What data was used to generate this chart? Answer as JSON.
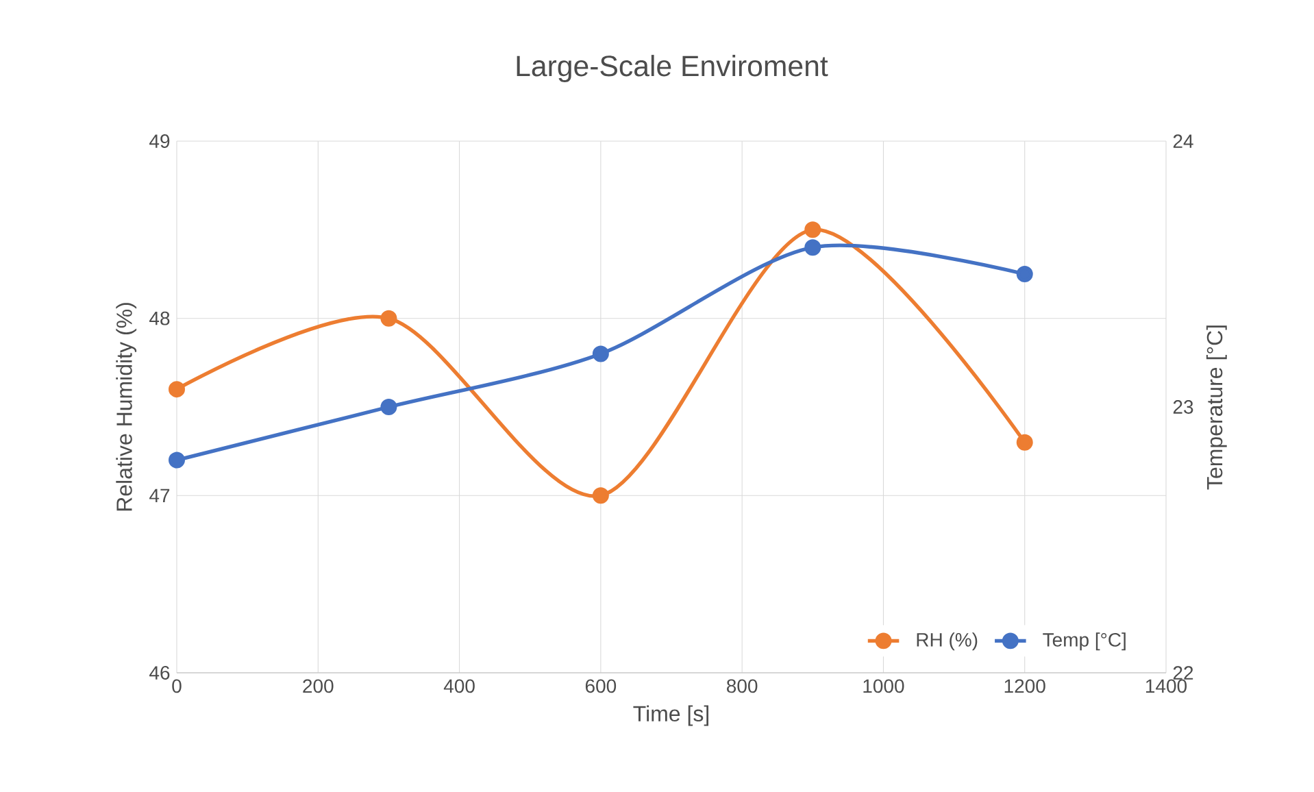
{
  "chart_data": {
    "type": "line",
    "title": "Large-Scale Enviroment",
    "xlabel": "Time [s]",
    "ylabel": "Relative Humidity (%)",
    "y2label": "Temperature [°C]",
    "x": [
      0,
      300,
      600,
      900,
      1200
    ],
    "series": [
      {
        "name": "RH (%)",
        "color": "#ed7d31",
        "values": [
          47.6,
          48.0,
          47.0,
          48.5,
          47.3
        ]
      },
      {
        "name": "Temp [°C]",
        "color": "#4472c4",
        "values": [
          22.8,
          23.0,
          23.2,
          23.6,
          23.5
        ],
        "axis": "y2"
      }
    ],
    "xlim": [
      0,
      1400
    ],
    "xticks": [
      0,
      200,
      400,
      600,
      800,
      1000,
      1200,
      1400
    ],
    "ylim": [
      46,
      49
    ],
    "yticks": [
      46,
      47,
      48,
      49
    ],
    "y2lim": [
      22,
      24
    ],
    "y2ticks": [
      22,
      23,
      24
    ],
    "grid": true,
    "legend": "bottom right",
    "marker": "circle",
    "line_style": "solid"
  }
}
